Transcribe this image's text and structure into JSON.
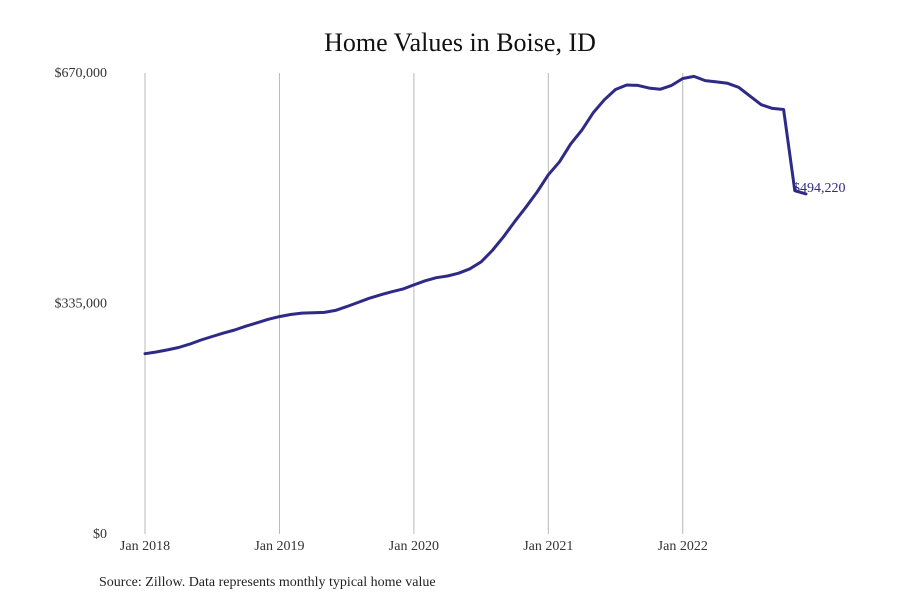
{
  "chart_data": {
    "type": "line",
    "title": "Home Values in Boise, ID",
    "xlabel": "",
    "ylabel": "",
    "x_tick_labels": [
      "Jan 2018",
      "Jan 2019",
      "Jan 2020",
      "Jan 2021",
      "Jan 2022"
    ],
    "y_tick_labels": [
      "$670,000",
      "$335,000",
      "$0"
    ],
    "y_ticks": [
      670000,
      335000,
      0
    ],
    "ylim": [
      0,
      670000
    ],
    "x_range": [
      "2018-01",
      "2022-12"
    ],
    "grid": "vertical lines at January of each year",
    "series": [
      {
        "color": "#2e2a85",
        "end_label": "$494,220",
        "x": [
          "2018-01",
          "2018-02",
          "2018-03",
          "2018-04",
          "2018-05",
          "2018-06",
          "2018-07",
          "2018-08",
          "2018-09",
          "2018-10",
          "2018-11",
          "2018-12",
          "2019-01",
          "2019-02",
          "2019-03",
          "2019-04",
          "2019-05",
          "2019-06",
          "2019-07",
          "2019-08",
          "2019-09",
          "2019-10",
          "2019-11",
          "2019-12",
          "2020-01",
          "2020-02",
          "2020-03",
          "2020-04",
          "2020-05",
          "2020-06",
          "2020-07",
          "2020-08",
          "2020-09",
          "2020-10",
          "2020-11",
          "2020-12",
          "2021-01",
          "2021-02",
          "2021-03",
          "2021-04",
          "2021-05",
          "2021-06",
          "2021-07",
          "2021-08",
          "2021-09",
          "2021-10",
          "2021-11",
          "2021-12",
          "2022-01",
          "2022-02",
          "2022-03",
          "2022-04",
          "2022-05",
          "2022-06",
          "2022-07",
          "2022-08",
          "2022-09",
          "2022-10",
          "2022-11",
          "2022-12"
        ],
        "values": [
          262000,
          264500,
          267500,
          271000,
          276000,
          282000,
          287000,
          292000,
          296500,
          302000,
          307000,
          312000,
          316000,
          319000,
          321000,
          321500,
          322000,
          325000,
          330500,
          336500,
          342500,
          347500,
          352000,
          356000,
          362000,
          368000,
          372500,
          375000,
          379000,
          385500,
          395500,
          412000,
          432000,
          454000,
          475000,
          497000,
          522000,
          541000,
          567000,
          587000,
          612000,
          631000,
          646000,
          652500,
          652000,
          648000,
          646500,
          652000,
          662000,
          665000,
          659000,
          657000,
          655000,
          649000,
          636500,
          624000,
          618500,
          617000,
          499000,
          494220
        ]
      }
    ]
  },
  "source_text": "Source: Zillow. Data represents monthly typical home value"
}
